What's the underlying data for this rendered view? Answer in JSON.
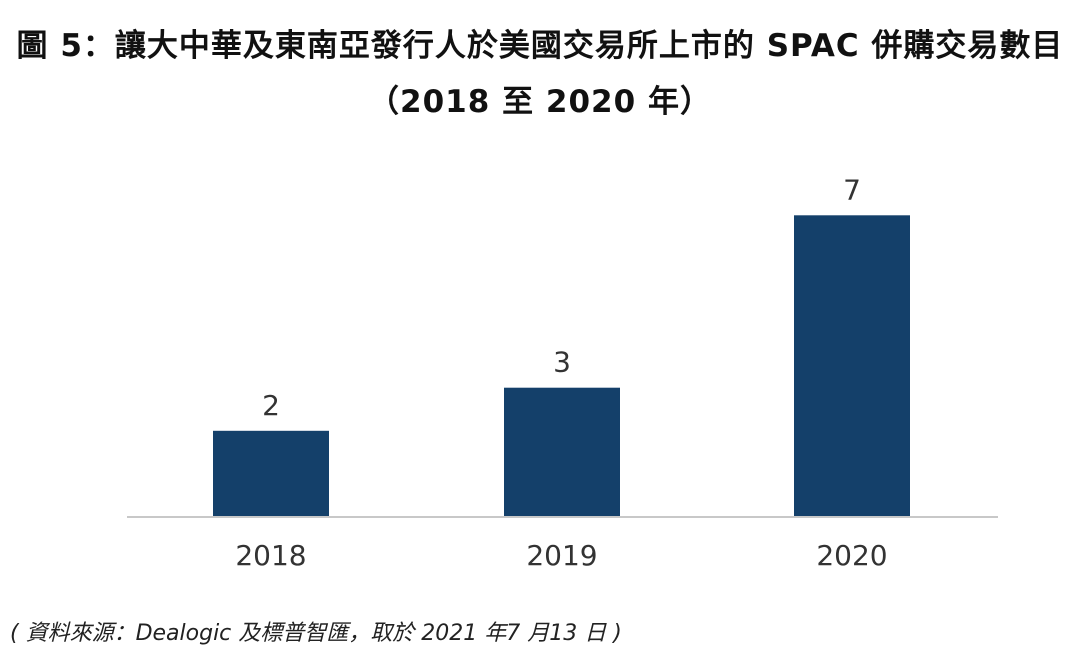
{
  "figure": {
    "title_line1": "圖 5：讓大中華及東南亞發行人於美國交易所上市的 SPAC 併購交易數目",
    "title_line2": "（2018 至 2020 年）",
    "source_note": "( 資料來源：Dealogic 及標普智匯，取於 2021 年7 月13 日 )"
  },
  "colors": {
    "bar": "#14406a",
    "axis": "#c8c8c8",
    "text": "#333333"
  },
  "chart_data": {
    "type": "bar",
    "title": "圖 5：讓大中華及東南亞發行人於美國交易所上市的 SPAC 併購交易數目 （2018 至 2020 年）",
    "categories": [
      "2018",
      "2019",
      "2020"
    ],
    "values": [
      2,
      3,
      7
    ],
    "data_labels": [
      "2",
      "3",
      "7"
    ],
    "xlabel": "",
    "ylabel": "",
    "ylim": [
      0,
      8
    ],
    "grid": false,
    "legend": "none"
  }
}
